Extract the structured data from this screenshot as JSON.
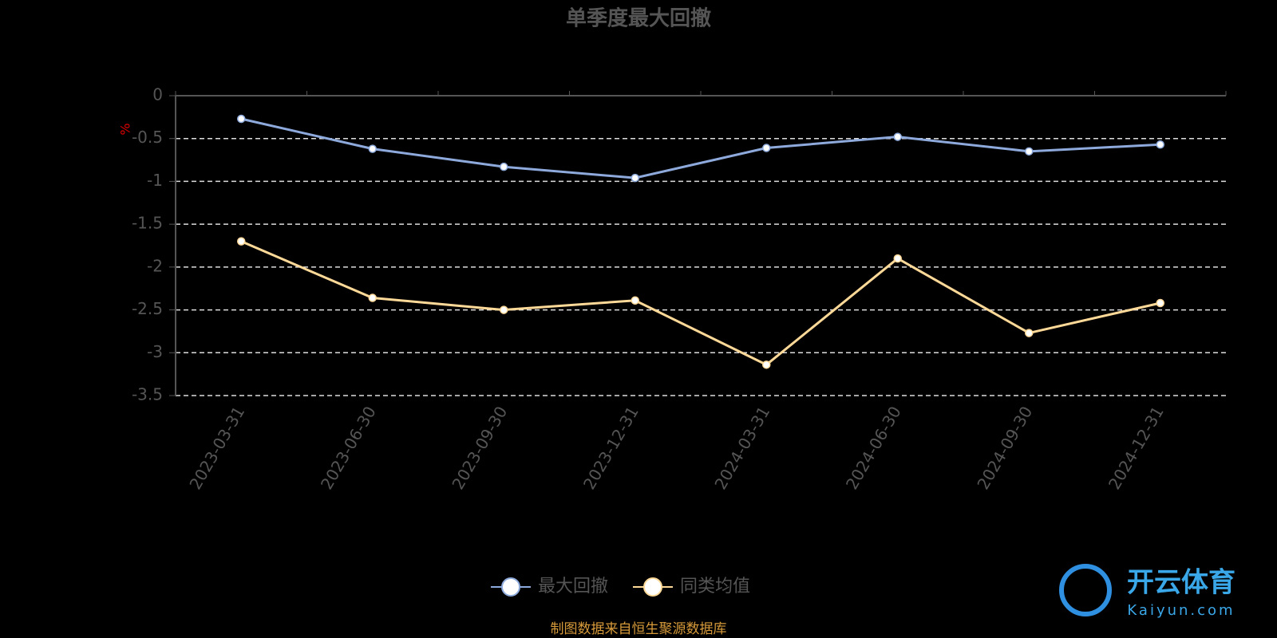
{
  "chart_data": {
    "type": "line",
    "title": "单季度最大回撤",
    "y_label": "%",
    "categories": [
      "2023-03-31",
      "2023-06-30",
      "2023-09-30",
      "2023-12-31",
      "2024-03-31",
      "2024-06-30",
      "2024-09-30",
      "2024-12-31"
    ],
    "series": [
      {
        "name": "最大回撤",
        "color": "#8eaadc",
        "values": [
          -0.27,
          -0.62,
          -0.83,
          -0.96,
          -0.61,
          -0.48,
          -0.65,
          -0.57
        ]
      },
      {
        "name": "同类均值",
        "color": "#ffd998",
        "values": [
          -1.7,
          -2.36,
          -2.5,
          -2.39,
          -3.14,
          -1.9,
          -2.77,
          -2.42
        ]
      }
    ],
    "ylim": [
      -3.5,
      0
    ],
    "yticks": [
      0,
      -0.5,
      -1,
      -1.5,
      -2,
      -2.5,
      -3,
      -3.5
    ],
    "grid": true,
    "legend": "bottom",
    "footer": "制图数据来自恒生聚源数据库",
    "watermark": {
      "brand": "开云体育",
      "site": "Kaiyun.com"
    }
  }
}
